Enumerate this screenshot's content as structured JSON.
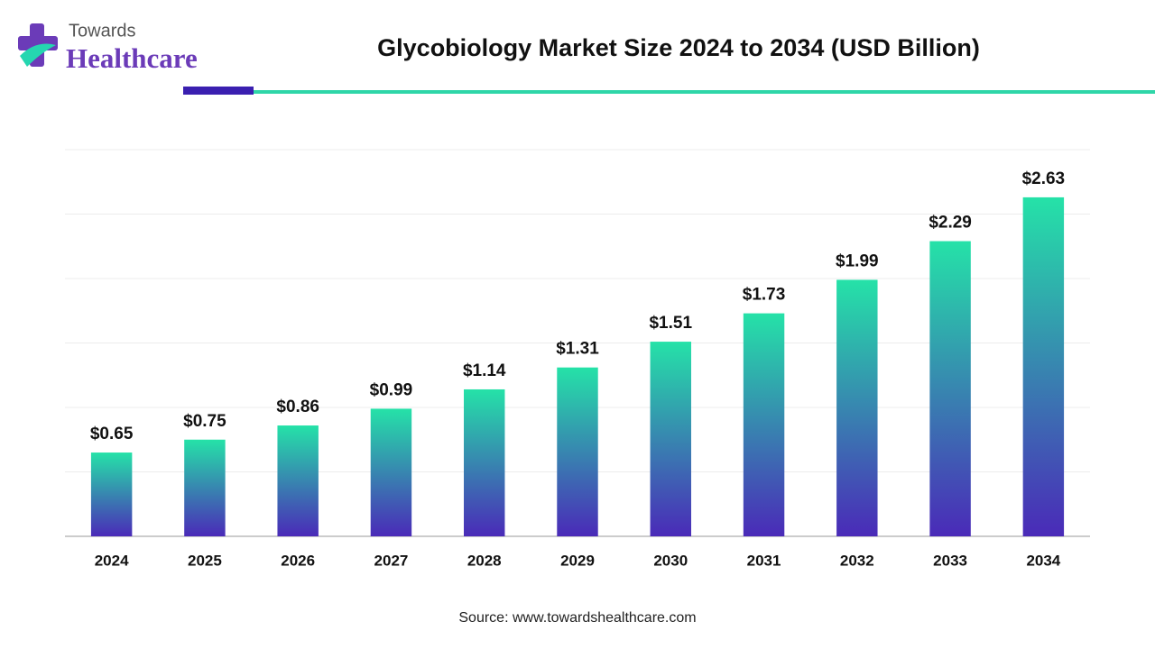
{
  "brand": {
    "line1": "Towards",
    "line2": "Healthcare"
  },
  "chart_data": {
    "type": "bar",
    "title": "Glycobiology Market Size 2024 to 2034 (USD Billion)",
    "categories": [
      "2024",
      "2025",
      "2026",
      "2027",
      "2028",
      "2029",
      "2030",
      "2031",
      "2032",
      "2033",
      "2034"
    ],
    "values": [
      0.65,
      0.75,
      0.86,
      0.99,
      1.14,
      1.31,
      1.51,
      1.73,
      1.99,
      2.29,
      2.63
    ],
    "value_labels": [
      "$0.65",
      "$0.75",
      "$0.86",
      "$0.99",
      "$1.14",
      "$1.31",
      "$1.51",
      "$1.73",
      "$1.99",
      "$2.29",
      "$2.63"
    ],
    "colors": [
      "#25e2a8",
      "#4a2ab8"
    ],
    "ylim": [
      0,
      3
    ],
    "yticks": [
      0,
      0.5,
      1,
      1.5,
      2,
      2.5,
      3
    ],
    "grid": true,
    "source": "Source: www.towardshealthcare.com"
  }
}
